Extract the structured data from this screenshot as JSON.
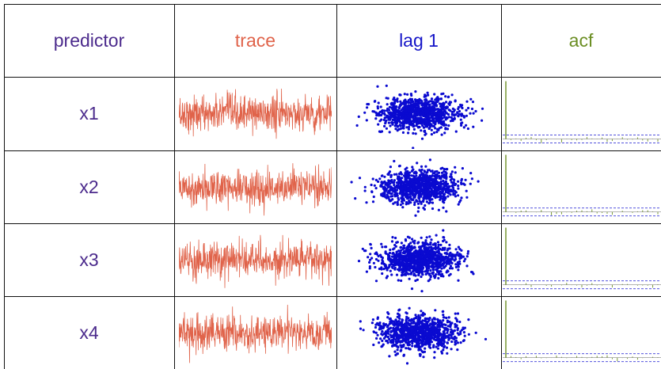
{
  "table": {
    "headers": [
      {
        "label": "predictor",
        "color": "#4b2a8c"
      },
      {
        "label": "trace",
        "color": "#e0634a"
      },
      {
        "label": "lag 1",
        "color": "#1515c8"
      },
      {
        "label": "acf",
        "color": "#6b8e23"
      }
    ],
    "row_label_color": "#4b2a8c",
    "rows": [
      {
        "label": "x1"
      },
      {
        "label": "x2"
      },
      {
        "label": "x3"
      },
      {
        "label": "x4"
      }
    ]
  },
  "chart_data": [
    {
      "type": "line",
      "predictor": "x1",
      "panel": "trace",
      "color": "#e0634a",
      "n_points": 500,
      "ylim": [
        -3.5,
        3.5
      ]
    },
    {
      "type": "scatter",
      "predictor": "x1",
      "panel": "lag 1",
      "color": "#0a0ad0",
      "n_points": 1000,
      "xlim": [
        -4,
        4
      ],
      "ylim": [
        -4,
        4
      ]
    },
    {
      "type": "bar",
      "predictor": "x1",
      "panel": "acf",
      "color": "#6b8e23",
      "lags": 30,
      "lag0_value": 1.0,
      "other_lags_approx": 0.0,
      "ci_color": "#3a3ad8"
    },
    {
      "type": "line",
      "predictor": "x2",
      "panel": "trace",
      "color": "#e0634a",
      "n_points": 500,
      "ylim": [
        -3.5,
        3.5
      ]
    },
    {
      "type": "scatter",
      "predictor": "x2",
      "panel": "lag 1",
      "color": "#0a0ad0",
      "n_points": 1000,
      "xlim": [
        -4,
        4
      ],
      "ylim": [
        -4,
        4
      ]
    },
    {
      "type": "bar",
      "predictor": "x2",
      "panel": "acf",
      "color": "#6b8e23",
      "lags": 30,
      "lag0_value": 1.0,
      "other_lags_approx": 0.0,
      "ci_color": "#3a3ad8"
    },
    {
      "type": "line",
      "predictor": "x3",
      "panel": "trace",
      "color": "#e0634a",
      "n_points": 500,
      "ylim": [
        -3.5,
        3.5
      ]
    },
    {
      "type": "scatter",
      "predictor": "x3",
      "panel": "lag 1",
      "color": "#0a0ad0",
      "n_points": 1000,
      "xlim": [
        -4,
        4
      ],
      "ylim": [
        -4,
        4
      ]
    },
    {
      "type": "bar",
      "predictor": "x3",
      "panel": "acf",
      "color": "#6b8e23",
      "lags": 30,
      "lag0_value": 1.0,
      "other_lags_approx": 0.0,
      "ci_color": "#3a3ad8"
    },
    {
      "type": "line",
      "predictor": "x4",
      "panel": "trace",
      "color": "#e0634a",
      "n_points": 500,
      "ylim": [
        -3.5,
        3.5
      ]
    },
    {
      "type": "scatter",
      "predictor": "x4",
      "panel": "lag 1",
      "color": "#0a0ad0",
      "n_points": 1000,
      "xlim": [
        -4,
        4
      ],
      "ylim": [
        -4,
        4
      ]
    },
    {
      "type": "bar",
      "predictor": "x4",
      "panel": "acf",
      "color": "#6b8e23",
      "lags": 30,
      "lag0_value": 1.0,
      "other_lags_approx": 0.0,
      "ci_color": "#3a3ad8"
    }
  ]
}
